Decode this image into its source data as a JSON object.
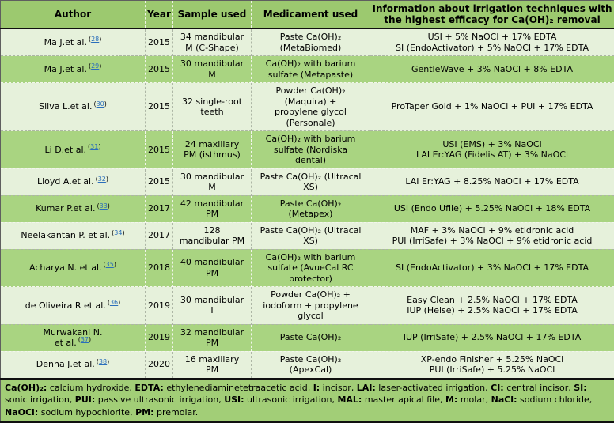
{
  "colors": {
    "header_bg": "#9cc96f",
    "row_green": "#a9d481",
    "row_light": "#e6f1db",
    "footer_bg": "#a2ce77",
    "link_blue": "#2a6ebb",
    "heavy_border": "#101010"
  },
  "punct": {
    "open": "(",
    "close": ")"
  },
  "header": {
    "columns": [
      "Author",
      "Year",
      "Sample used",
      "Medicament used",
      "Information about irrigation techniques with the highest efficacy for Ca(OH)₂ removal"
    ]
  },
  "rows": [
    {
      "shade": "light",
      "author": "Ma J.et al.",
      "ref": "28",
      "year": "2015",
      "sample": "34 mandibular\nM (C-Shape)",
      "medicament": "Paste Ca(OH)₂\n(MetaBiomed)",
      "info": "USI + 5% NaOCl + 17% EDTA\nSI (EndoActivator) + 5% NaOCl + 17% EDTA"
    },
    {
      "shade": "green",
      "author": "Ma J.et al.",
      "ref": "29",
      "year": "2015",
      "sample": "30 mandibular\nM",
      "medicament": "Ca(OH)₂ with barium\nsulfate (Metapaste)",
      "info": "GentleWave + 3% NaOCl + 8% EDTA"
    },
    {
      "shade": "light",
      "author": "Silva L.et al.",
      "ref": "30",
      "year": "2015",
      "sample": "32 single-root\nteeth",
      "medicament": "Powder Ca(OH)₂\n(Maquira) +\npropylene glycol\n(Personale)",
      "info": "ProTaper Gold + 1% NaOCl + PUI + 17% EDTA"
    },
    {
      "shade": "green",
      "author": "Li D.et al.",
      "ref": "31",
      "year": "2015",
      "sample": "24 maxillary\nPM (isthmus)",
      "medicament": "Ca(OH)₂ with barium\nsulfate (Nordiska\ndental)",
      "info": "USI (EMS) + 3% NaOCl\nLAI Er:YAG (Fidelis AT) + 3% NaOCl"
    },
    {
      "shade": "light",
      "author": "Lloyd A.et al.",
      "ref": "32",
      "year": "2015",
      "sample": "30 mandibular\nM",
      "medicament": "Paste Ca(OH)₂ (Ultracal\nXS)",
      "info": "LAI Er:YAG + 8.25% NaOCl + 17% EDTA"
    },
    {
      "shade": "green",
      "author": "Kumar P.et al.",
      "ref": "33",
      "year": "2017",
      "sample": "42 mandibular\nPM",
      "medicament": "Paste Ca(OH)₂\n(Metapex)",
      "info": "USI (Endo Ufile) + 5.25% NaOCl + 18% EDTA"
    },
    {
      "shade": "light",
      "author": "Neelakantan P. et al.",
      "ref": "34",
      "year": "2017",
      "sample": "128\nmandibular PM",
      "medicament": "Paste Ca(OH)₂ (Ultracal\nXS)",
      "info": "MAF + 3% NaOCl + 9% etidronic acid\nPUI (IrriSafe) + 3% NaOCl + 9% etidronic acid"
    },
    {
      "shade": "green",
      "author": "Acharya N. et al.",
      "ref": "35",
      "year": "2018",
      "sample": "40 mandibular\nPM",
      "medicament": "Ca(OH)₂ with barium\nsulfate (AvueCal RC\nprotector)",
      "info": "SI (EndoActivator) + 3% NaOCl + 17% EDTA"
    },
    {
      "shade": "light",
      "author": "de Oliveira R et al.",
      "ref": "36",
      "year": "2019",
      "sample": "30 mandibular\nI",
      "medicament": "Powder Ca(OH)₂ +\niodoform + propylene\nglycol",
      "info": "Easy Clean + 2.5% NaOCl + 17% EDTA\nIUP (Helse) + 2.5% NaOCl + 17% EDTA"
    },
    {
      "shade": "green",
      "author": "Murwakani N.\net al.",
      "ref": "37",
      "year": "2019",
      "sample": "32 mandibular\nPM",
      "medicament": "Paste Ca(OH)₂",
      "info": "IUP (IrriSafe) + 2.5% NaOCl + 17% EDTA"
    },
    {
      "shade": "light",
      "author": "Denna J.et al.",
      "ref": "38",
      "year": "2020",
      "sample": "16 maxillary\nPM",
      "medicament": "Paste Ca(OH)₂\n(ApexCal)",
      "info": "XP-endo Finisher + 5.25% NaOCl\nPUI (IrriSafe) + 5.25% NaOCl"
    }
  ],
  "footer": {
    "segments": [
      {
        "term": "Ca(OH)₂:",
        "desc": " calcium hydroxide, "
      },
      {
        "term": "EDTA:",
        "desc": " ethylenediaminetetraacetic acid, "
      },
      {
        "term": "I:",
        "desc": " incisor, "
      },
      {
        "term": "LAI:",
        "desc": " laser-activated irrigation, "
      },
      {
        "term": "CI:",
        "desc": " central incisor, "
      },
      {
        "term": "SI:",
        "desc": " sonic irrigation, "
      },
      {
        "term": "PUI:",
        "desc": " passive ultrasonic irrigation, "
      },
      {
        "term": "USI:",
        "desc": " ultrasonic irrigation, "
      },
      {
        "term": "MAL:",
        "desc": " master apical file, "
      },
      {
        "term": "M:",
        "desc": " molar, "
      },
      {
        "term": "NaCl:",
        "desc": " sodium chloride, "
      },
      {
        "term": "NaOCl:",
        "desc": " sodium hypochlorite, "
      },
      {
        "term": "PM:",
        "desc": " premolar."
      }
    ]
  }
}
